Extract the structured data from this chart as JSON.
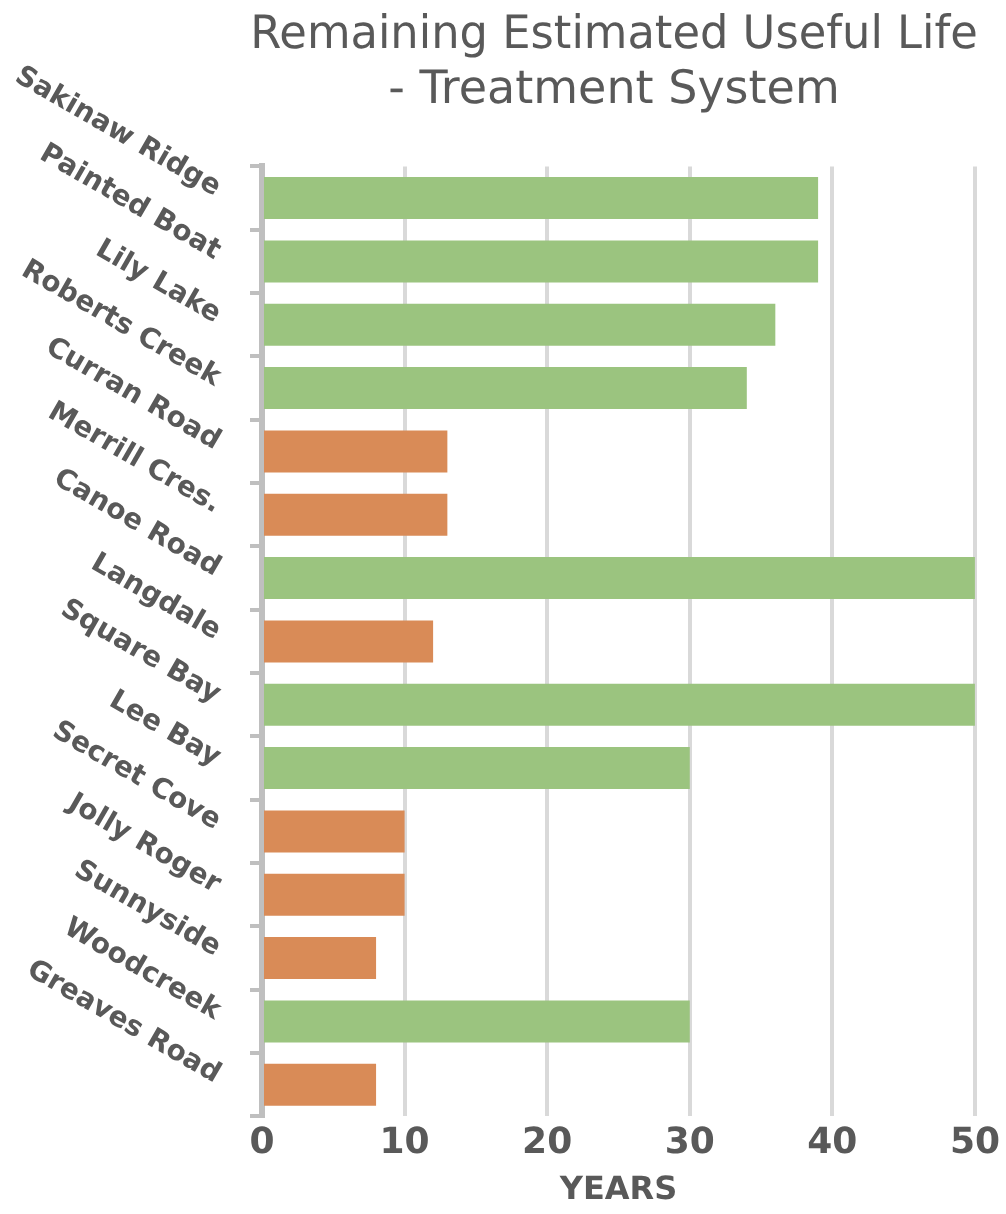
{
  "chart_data": {
    "type": "bar",
    "orientation": "horizontal",
    "title": "Remaining Estimated Useful Life\n- Treatment System",
    "xlabel": "YEARS",
    "categories": [
      "Sakinaw Ridge",
      "Painted Boat",
      "Lily Lake",
      "Roberts Creek",
      "Curran Road",
      "Merrill Cres.",
      "Canoe Road",
      "Langdale",
      "Square Bay",
      "Lee Bay",
      "Secret Cove",
      "Jolly Roger",
      "Sunnyside",
      "Woodcreek",
      "Greaves Road"
    ],
    "values": [
      39,
      39,
      36,
      34,
      13,
      13,
      50,
      12,
      50,
      30,
      10,
      10,
      8,
      30,
      8
    ],
    "colors": [
      "#9bc47f",
      "#9bc47f",
      "#9bc47f",
      "#9bc47f",
      "#d98b57",
      "#d98b57",
      "#9bc47f",
      "#d98b57",
      "#9bc47f",
      "#9bc47f",
      "#d98b57",
      "#d98b57",
      "#d98b57",
      "#9bc47f",
      "#d98b57"
    ],
    "xlim": [
      0,
      50
    ],
    "xticks": [
      0,
      10,
      20,
      30,
      40,
      50
    ],
    "grid": "x"
  }
}
